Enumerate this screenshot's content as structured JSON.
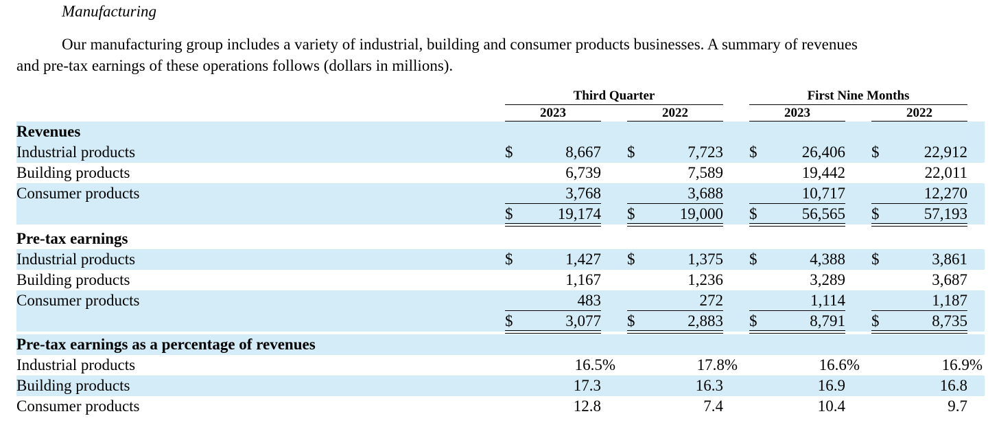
{
  "section": {
    "heading": "Manufacturing",
    "paragraph_line1": "Our manufacturing group includes a variety of industrial, building and consumer products businesses. A summary of revenues",
    "paragraph_line2": "and pre-tax earnings of these operations follows (dollars in millions)."
  },
  "table": {
    "column_groups": [
      "Third Quarter",
      "First Nine Months"
    ],
    "years": [
      "2023",
      "2022",
      "2023",
      "2022"
    ],
    "currency_symbol": "$",
    "revenues": {
      "title": "Revenues",
      "rows": [
        {
          "label": "Industrial products",
          "values": [
            "8,667",
            "7,723",
            "26,406",
            "22,912"
          ]
        },
        {
          "label": "Building products",
          "values": [
            "6,739",
            "7,589",
            "19,442",
            "22,011"
          ]
        },
        {
          "label": "Consumer products",
          "values": [
            "3,768",
            "3,688",
            "10,717",
            "12,270"
          ]
        }
      ],
      "total": [
        "19,174",
        "19,000",
        "56,565",
        "57,193"
      ]
    },
    "earnings": {
      "title": "Pre-tax earnings",
      "rows": [
        {
          "label": "Industrial products",
          "values": [
            "1,427",
            "1,375",
            "4,388",
            "3,861"
          ]
        },
        {
          "label": "Building products",
          "values": [
            "1,167",
            "1,236",
            "3,289",
            "3,687"
          ]
        },
        {
          "label": "Consumer products",
          "values": [
            "483",
            "272",
            "1,114",
            "1,187"
          ]
        }
      ],
      "total": [
        "3,077",
        "2,883",
        "8,791",
        "8,735"
      ]
    },
    "percentage": {
      "title": "Pre-tax earnings as a percentage of revenues",
      "rows": [
        {
          "label": "Industrial products",
          "values": [
            "16.5%",
            "17.8%",
            "16.6%",
            "16.9%"
          ]
        },
        {
          "label": "Building products",
          "values": [
            "17.3",
            "16.3",
            "16.9",
            "16.8"
          ]
        },
        {
          "label": "Consumer products",
          "values": [
            "12.8",
            "7.4",
            "10.4",
            "9.7"
          ]
        }
      ]
    },
    "row_shading": "#d3ecf7"
  }
}
